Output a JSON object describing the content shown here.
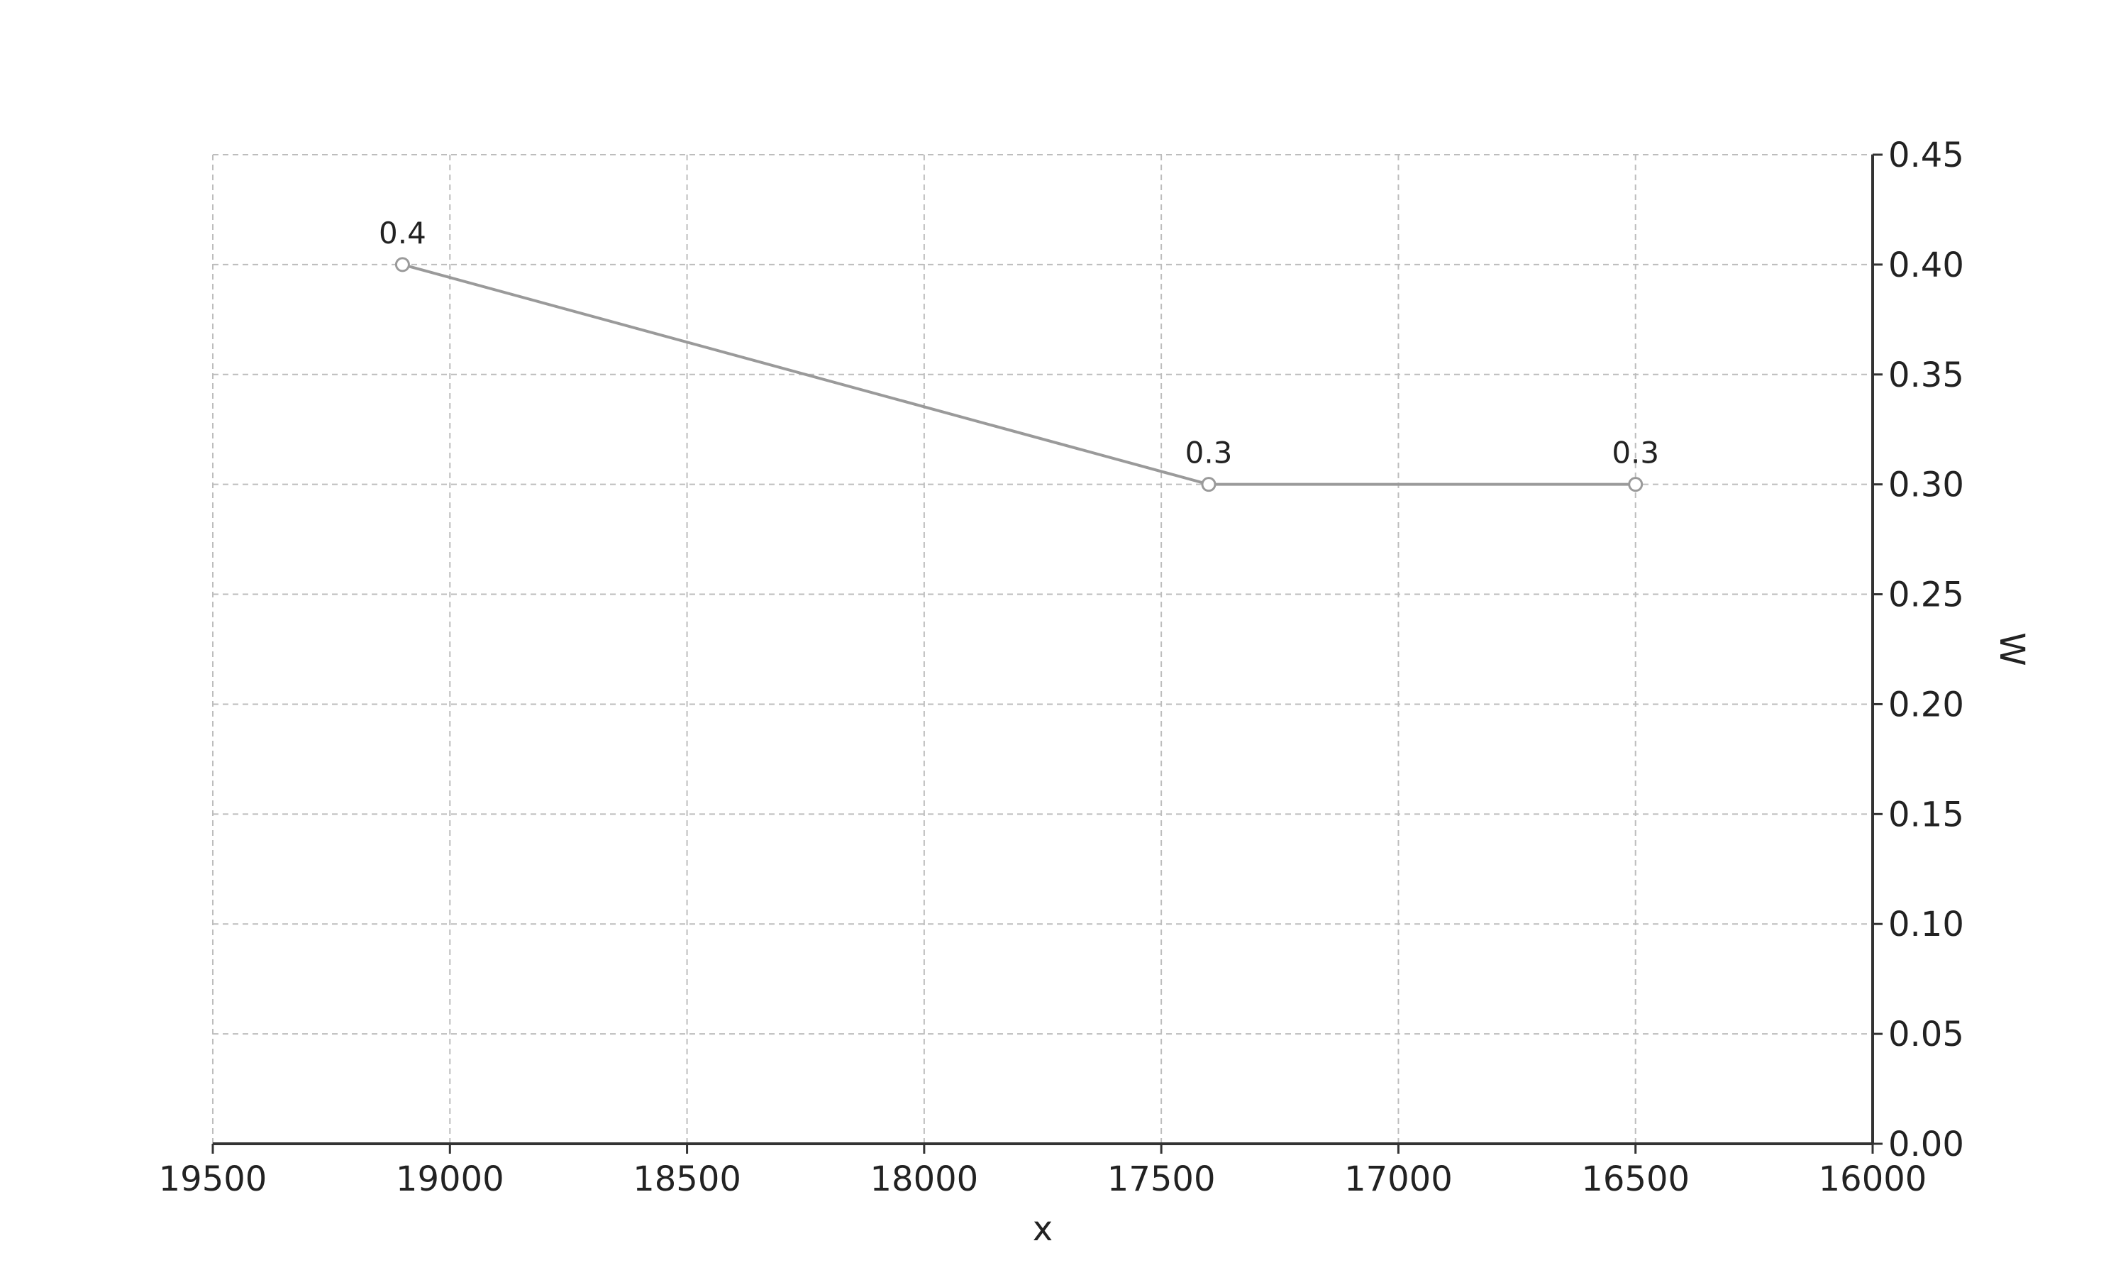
{
  "chart_data": {
    "type": "line",
    "title": "",
    "xlabel": "x",
    "ylabel": "W",
    "x_axis_reversed": true,
    "y_axis_side": "right",
    "xlim": [
      16000,
      19500
    ],
    "ylim": [
      0.0,
      0.45
    ],
    "x_ticks": [
      16000,
      16500,
      17000,
      17500,
      18000,
      18500,
      19000,
      19500
    ],
    "x_tick_labels": [
      "16000",
      "16500",
      "17000",
      "17500",
      "18000",
      "18500",
      "19000",
      "19500"
    ],
    "y_ticks": [
      0.0,
      0.05,
      0.1,
      0.15,
      0.2,
      0.25,
      0.3,
      0.35,
      0.4,
      0.45
    ],
    "y_tick_labels": [
      "0.00",
      "0.05",
      "0.10",
      "0.15",
      "0.20",
      "0.25",
      "0.30",
      "0.35",
      "0.40",
      "0.45"
    ],
    "grid": true,
    "series": [
      {
        "x": [
          16500,
          17400,
          19100
        ],
        "y": [
          0.3,
          0.3,
          0.4
        ],
        "data_labels": [
          "0.3",
          "0.3",
          "0.4"
        ],
        "color": "#9a9a9a",
        "marker": "circle"
      }
    ],
    "colors": {
      "grid": "#bdbdbd",
      "axis": "#333333",
      "line": "#9a9a9a",
      "marker_fill": "#ffffff",
      "marker_edge": "#9a9a9a"
    }
  }
}
